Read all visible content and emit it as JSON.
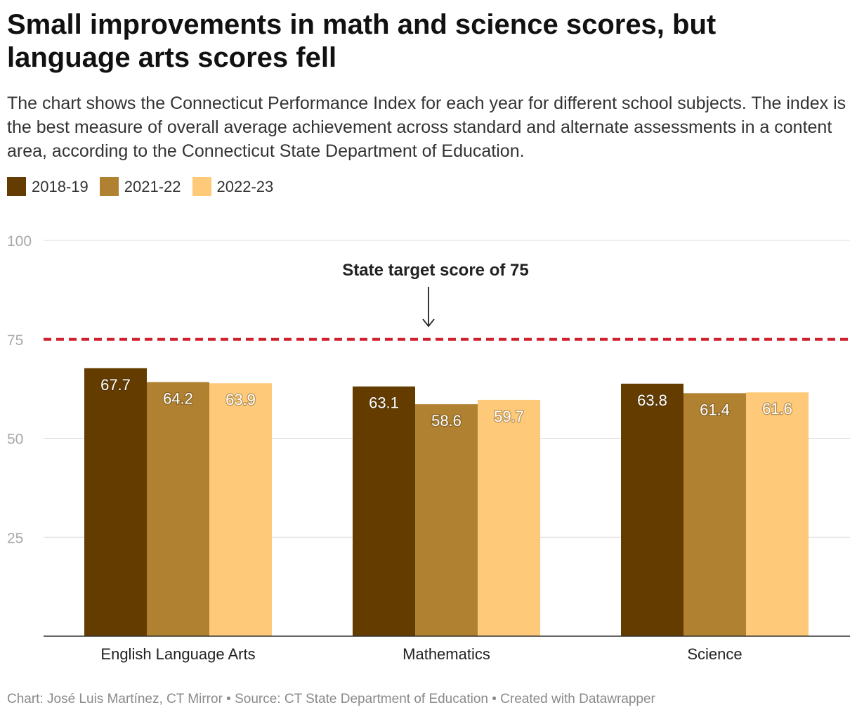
{
  "header": {
    "title": "Small improvements in math and science scores, but language arts scores fell",
    "subtitle": "The chart shows the Connecticut Performance Index for each year for different school subjects. The index is the best measure of overall average achievement across standard and alternate assessments in a content area, according to the Connecticut State Department of Education."
  },
  "chart_data": {
    "type": "bar",
    "categories": [
      "English Language Arts",
      "Mathematics",
      "Science"
    ],
    "series": [
      {
        "name": "2018-19",
        "color": "#653c00",
        "values": [
          67.7,
          63.1,
          63.8
        ]
      },
      {
        "name": "2021-22",
        "color": "#b08130",
        "values": [
          64.2,
          58.6,
          61.4
        ]
      },
      {
        "name": "2022-23",
        "color": "#fec978",
        "values": [
          63.9,
          59.7,
          61.6
        ]
      }
    ],
    "ylim": [
      0,
      100
    ],
    "yticks": [
      25,
      50,
      75,
      100
    ],
    "grid": true,
    "legend_position": "top-left",
    "reference_line": {
      "value": 75,
      "color": "#d0202e",
      "style": "dashed"
    },
    "annotation": {
      "text": "State target score of 75",
      "target_value": 75
    }
  },
  "footer": {
    "credit": "Chart: José Luis Martínez, CT Mirror • Source: CT State Department of Education • Created with Datawrapper"
  }
}
